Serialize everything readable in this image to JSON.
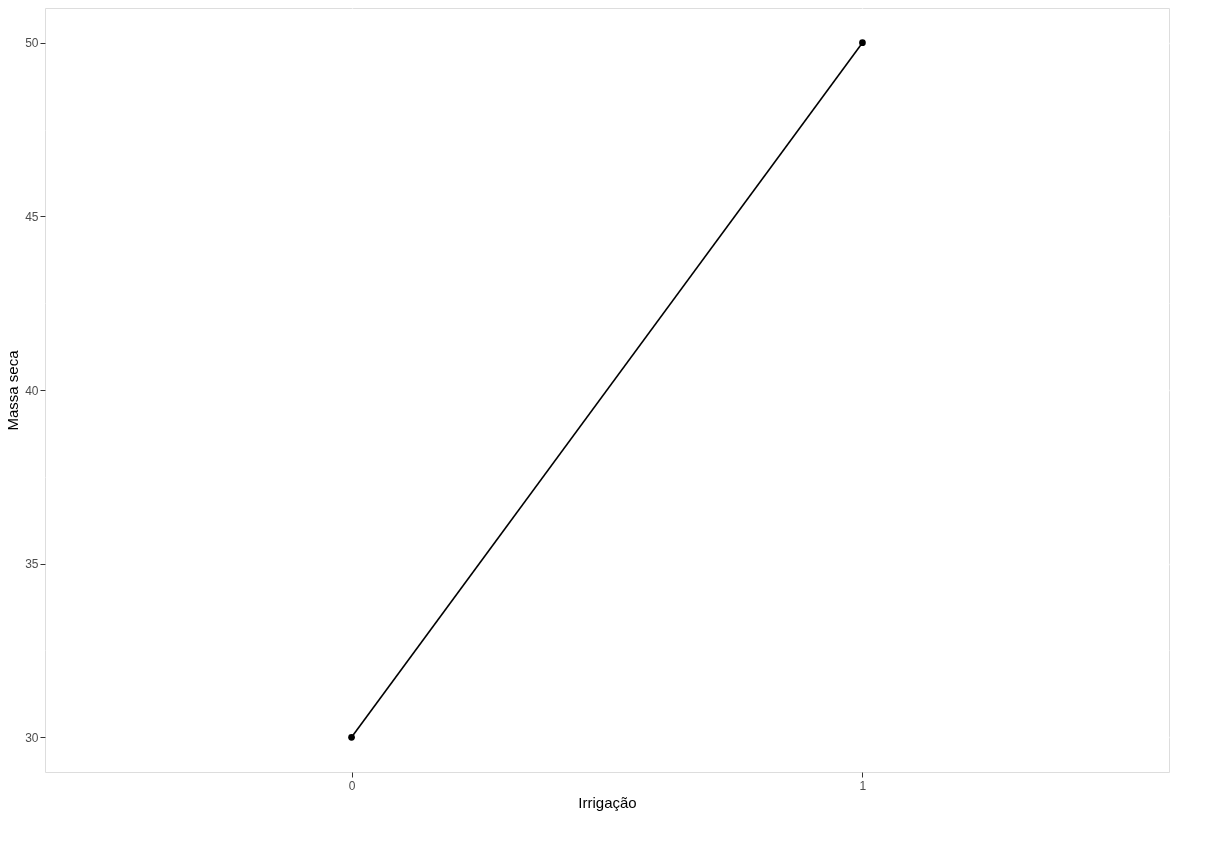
{
  "chart_data": {
    "type": "line",
    "xlabel": "Irrigação",
    "ylabel": "Massa seca",
    "categories": [
      "0",
      "1"
    ],
    "series": [
      {
        "color": "#000000",
        "values": [
          30,
          50
        ]
      }
    ],
    "ylim": [
      29,
      51
    ],
    "yticks": [
      30,
      {
        "value": 32.5,
        "label": null
      },
      35,
      {
        "value": 37.5,
        "label": null
      },
      40,
      {
        "value": 42.5,
        "label": null
      },
      45,
      {
        "value": 47.5,
        "label": null
      },
      50
    ],
    "grid": true,
    "marker": "circle",
    "line_style": "solid"
  }
}
